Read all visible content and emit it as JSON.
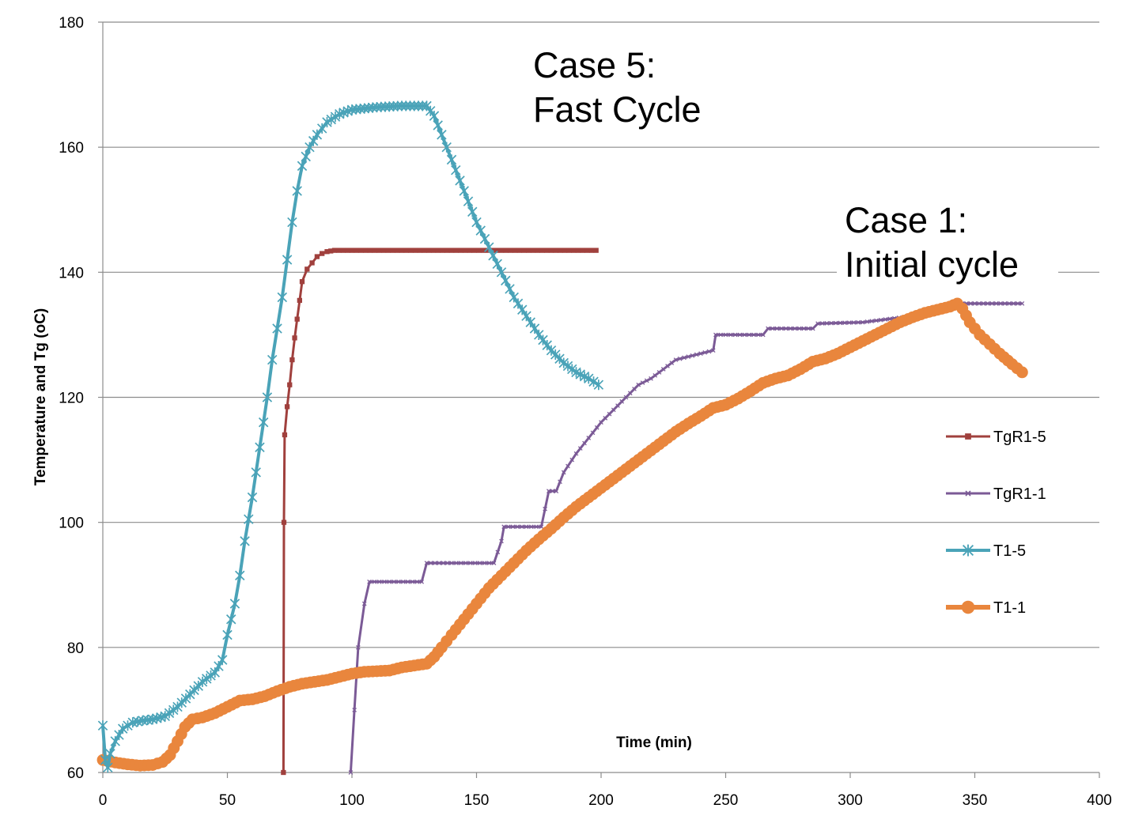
{
  "chart_data": {
    "type": "line",
    "title": "",
    "xlabel": "Time (min)",
    "ylabel": "Temperature and Tg (oC)",
    "xlim": [
      0,
      400
    ],
    "ylim": [
      60,
      180
    ],
    "xticks": [
      0,
      50,
      100,
      150,
      200,
      250,
      300,
      350,
      400
    ],
    "yticks": [
      60,
      80,
      100,
      120,
      140,
      160,
      180
    ],
    "grid": "horizontal",
    "legend_position": "right",
    "annotations": [
      {
        "lines": [
          "Case 5:",
          "Fast Cycle"
        ],
        "x": 172,
        "y": 172
      },
      {
        "lines": [
          "Case 1:",
          "Initial cycle"
        ],
        "x": 297,
        "y": 147
      }
    ],
    "series": [
      {
        "name": "TgR1-5",
        "color": "#a0403d",
        "marker": "square",
        "points": [
          [
            72.5,
            60
          ],
          [
            72.7,
            100
          ],
          [
            73,
            114
          ],
          [
            74,
            118.5
          ],
          [
            75,
            122
          ],
          [
            76,
            126
          ],
          [
            77,
            129.5
          ],
          [
            78,
            132.5
          ],
          [
            79,
            135.5
          ],
          [
            80,
            138.5
          ],
          [
            82,
            140.5
          ],
          [
            84,
            141.5
          ],
          [
            86,
            142.5
          ],
          [
            88,
            143
          ],
          [
            90,
            143.3
          ],
          [
            93,
            143.5
          ],
          [
            100,
            143.5
          ],
          [
            120,
            143.5
          ],
          [
            140,
            143.5
          ],
          [
            160,
            143.5
          ],
          [
            180,
            143.5
          ],
          [
            198,
            143.5
          ]
        ]
      },
      {
        "name": "TgR1-1",
        "color": "#7b5a96",
        "marker": "x",
        "points": [
          [
            99.5,
            60
          ],
          [
            101,
            70
          ],
          [
            102.5,
            80
          ],
          [
            105,
            87
          ],
          [
            107,
            90.5
          ],
          [
            115,
            90.5
          ],
          [
            128,
            90.5
          ],
          [
            130,
            93.5
          ],
          [
            140,
            93.5
          ],
          [
            157,
            93.5
          ],
          [
            160,
            97
          ],
          [
            161,
            99.3
          ],
          [
            170,
            99.3
          ],
          [
            176,
            99.3
          ],
          [
            179,
            105
          ],
          [
            182,
            105
          ],
          [
            185,
            108
          ],
          [
            190,
            111
          ],
          [
            195,
            113.5
          ],
          [
            200,
            116
          ],
          [
            205,
            118
          ],
          [
            210,
            120
          ],
          [
            215,
            122
          ],
          [
            220,
            123
          ],
          [
            225,
            124.5
          ],
          [
            230,
            126
          ],
          [
            235,
            126.5
          ],
          [
            245,
            127.5
          ],
          [
            246,
            130
          ],
          [
            252,
            130
          ],
          [
            265,
            130
          ],
          [
            267,
            131
          ],
          [
            285,
            131
          ],
          [
            287,
            131.8
          ],
          [
            305,
            132
          ],
          [
            325,
            133
          ],
          [
            340,
            135
          ],
          [
            350,
            135
          ],
          [
            369,
            135
          ]
        ]
      },
      {
        "name": "T1-5",
        "color": "#4aa3b8",
        "marker": "star",
        "points": [
          [
            0,
            67.5
          ],
          [
            1,
            62
          ],
          [
            2,
            60.8
          ],
          [
            3,
            63
          ],
          [
            5,
            65
          ],
          [
            8,
            67
          ],
          [
            12,
            68
          ],
          [
            16,
            68.3
          ],
          [
            20,
            68.5
          ],
          [
            25,
            69
          ],
          [
            30,
            70.5
          ],
          [
            35,
            72.5
          ],
          [
            40,
            74.5
          ],
          [
            45,
            76
          ],
          [
            48,
            78
          ],
          [
            50,
            82
          ],
          [
            53,
            87
          ],
          [
            55,
            91.5
          ],
          [
            57,
            97
          ],
          [
            60,
            104
          ],
          [
            63,
            112
          ],
          [
            66,
            120
          ],
          [
            68,
            126
          ],
          [
            70,
            131
          ],
          [
            72,
            136
          ],
          [
            74,
            142
          ],
          [
            76,
            148
          ],
          [
            78,
            153
          ],
          [
            80,
            157
          ],
          [
            83,
            160
          ],
          [
            86,
            162
          ],
          [
            90,
            164
          ],
          [
            95,
            165.3
          ],
          [
            100,
            166
          ],
          [
            110,
            166.4
          ],
          [
            120,
            166.6
          ],
          [
            130,
            166.6
          ],
          [
            133,
            165
          ],
          [
            136,
            162
          ],
          [
            140,
            158
          ],
          [
            145,
            153
          ],
          [
            150,
            148
          ],
          [
            155,
            144
          ],
          [
            160,
            140
          ],
          [
            165,
            136
          ],
          [
            170,
            133
          ],
          [
            175,
            130
          ],
          [
            180,
            127.5
          ],
          [
            185,
            125.5
          ],
          [
            190,
            124
          ],
          [
            195,
            123
          ],
          [
            199,
            122
          ]
        ]
      },
      {
        "name": "T1-1",
        "color": "#e9863d",
        "marker": "circle",
        "points": [
          [
            0,
            62
          ],
          [
            5,
            61.6
          ],
          [
            10,
            61.3
          ],
          [
            15,
            61.1
          ],
          [
            20,
            61.2
          ],
          [
            24,
            61.7
          ],
          [
            27,
            62.8
          ],
          [
            30,
            65
          ],
          [
            33,
            67.3
          ],
          [
            36,
            68.5
          ],
          [
            40,
            68.8
          ],
          [
            45,
            69.5
          ],
          [
            50,
            70.5
          ],
          [
            55,
            71.5
          ],
          [
            60,
            71.7
          ],
          [
            65,
            72.2
          ],
          [
            70,
            73
          ],
          [
            75,
            73.7
          ],
          [
            80,
            74.2
          ],
          [
            85,
            74.5
          ],
          [
            90,
            74.8
          ],
          [
            95,
            75.3
          ],
          [
            100,
            75.8
          ],
          [
            105,
            76.1
          ],
          [
            110,
            76.2
          ],
          [
            115,
            76.3
          ],
          [
            120,
            76.8
          ],
          [
            125,
            77.1
          ],
          [
            130,
            77.4
          ],
          [
            133,
            78.5
          ],
          [
            136,
            80
          ],
          [
            140,
            82
          ],
          [
            145,
            84.5
          ],
          [
            150,
            87
          ],
          [
            155,
            89.5
          ],
          [
            160,
            91.5
          ],
          [
            165,
            93.5
          ],
          [
            170,
            95.5
          ],
          [
            175,
            97.3
          ],
          [
            180,
            99
          ],
          [
            185,
            100.8
          ],
          [
            190,
            102.5
          ],
          [
            195,
            104
          ],
          [
            200,
            105.5
          ],
          [
            205,
            107
          ],
          [
            210,
            108.5
          ],
          [
            215,
            110
          ],
          [
            220,
            111.5
          ],
          [
            225,
            113
          ],
          [
            230,
            114.5
          ],
          [
            235,
            115.8
          ],
          [
            240,
            117
          ],
          [
            245,
            118.3
          ],
          [
            250,
            118.8
          ],
          [
            255,
            119.8
          ],
          [
            260,
            121
          ],
          [
            265,
            122.3
          ],
          [
            270,
            123
          ],
          [
            275,
            123.5
          ],
          [
            280,
            124.5
          ],
          [
            285,
            125.7
          ],
          [
            290,
            126.2
          ],
          [
            295,
            127
          ],
          [
            300,
            128
          ],
          [
            305,
            129
          ],
          [
            310,
            130
          ],
          [
            315,
            131
          ],
          [
            320,
            132
          ],
          [
            325,
            132.8
          ],
          [
            330,
            133.5
          ],
          [
            335,
            134
          ],
          [
            340,
            134.5
          ],
          [
            343,
            135
          ],
          [
            345,
            134.2
          ],
          [
            348,
            132
          ],
          [
            352,
            130
          ],
          [
            356,
            128.5
          ],
          [
            360,
            127
          ],
          [
            365,
            125.3
          ],
          [
            369,
            124
          ]
        ]
      }
    ]
  }
}
